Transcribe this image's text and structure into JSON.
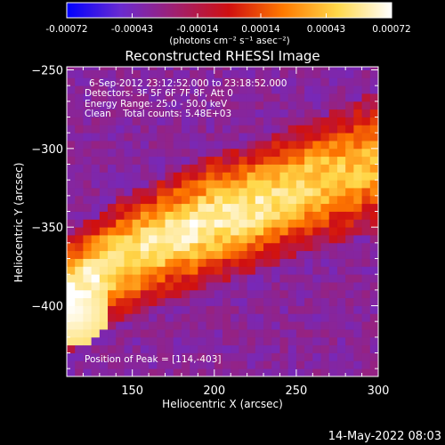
{
  "chart_data": {
    "type": "heatmap",
    "title": "Reconstructed RHESSI Image",
    "colorbar": {
      "ticks": [
        "-0.00072",
        "-0.00043",
        "-0.00014",
        "0.00014",
        "0.00043",
        "0.00072"
      ],
      "range": [
        -0.00072,
        0.00072
      ],
      "unit_label": "(photons cm⁻² s⁻¹ asec⁻²)",
      "colors": [
        "#0000ff",
        "#6a2bd0",
        "#a02070",
        "#d01010",
        "#ff7a00",
        "#ffd84a",
        "#ffffff"
      ]
    },
    "info_lines": [
      "6-Sep-2012 23:12:52.000 to 23:18:52.000",
      "Detectors: 3F 5F 6F 7F 8F, Att 0",
      "Energy Range: 25.0 - 50.0 keV",
      "Clean    Total counts: 5.48E+03"
    ],
    "peak_label": "Position of Peak = [114,-403]",
    "xlabel": "Heliocentric X (arcsec)",
    "ylabel": "Heliocentric Y (arcsec)",
    "xlim": [
      110,
      300
    ],
    "ylim": [
      -445,
      -248
    ],
    "xticks": [
      150,
      200,
      250,
      300
    ],
    "yticks": [
      -250,
      -300,
      -350,
      -400
    ],
    "x_minor_step": 10,
    "y_minor_step": 10,
    "peak": [
      114,
      -403
    ],
    "background_value": -0.0003,
    "emission_band": {
      "description_points_x": [
        110,
        140,
        170,
        200,
        230,
        260,
        290,
        300
      ],
      "center_y": [
        -395,
        -372,
        -357,
        -345,
        -335,
        -322,
        -312,
        -308
      ],
      "half_width": [
        30,
        32,
        32,
        33,
        33,
        33,
        35,
        35
      ],
      "peak_value": [
        0.00072,
        0.00055,
        0.0006,
        0.00064,
        0.00058,
        0.0005,
        0.00042,
        0.0004
      ]
    }
  },
  "footer": {
    "timestamp": "14-May-2022 08:03"
  }
}
